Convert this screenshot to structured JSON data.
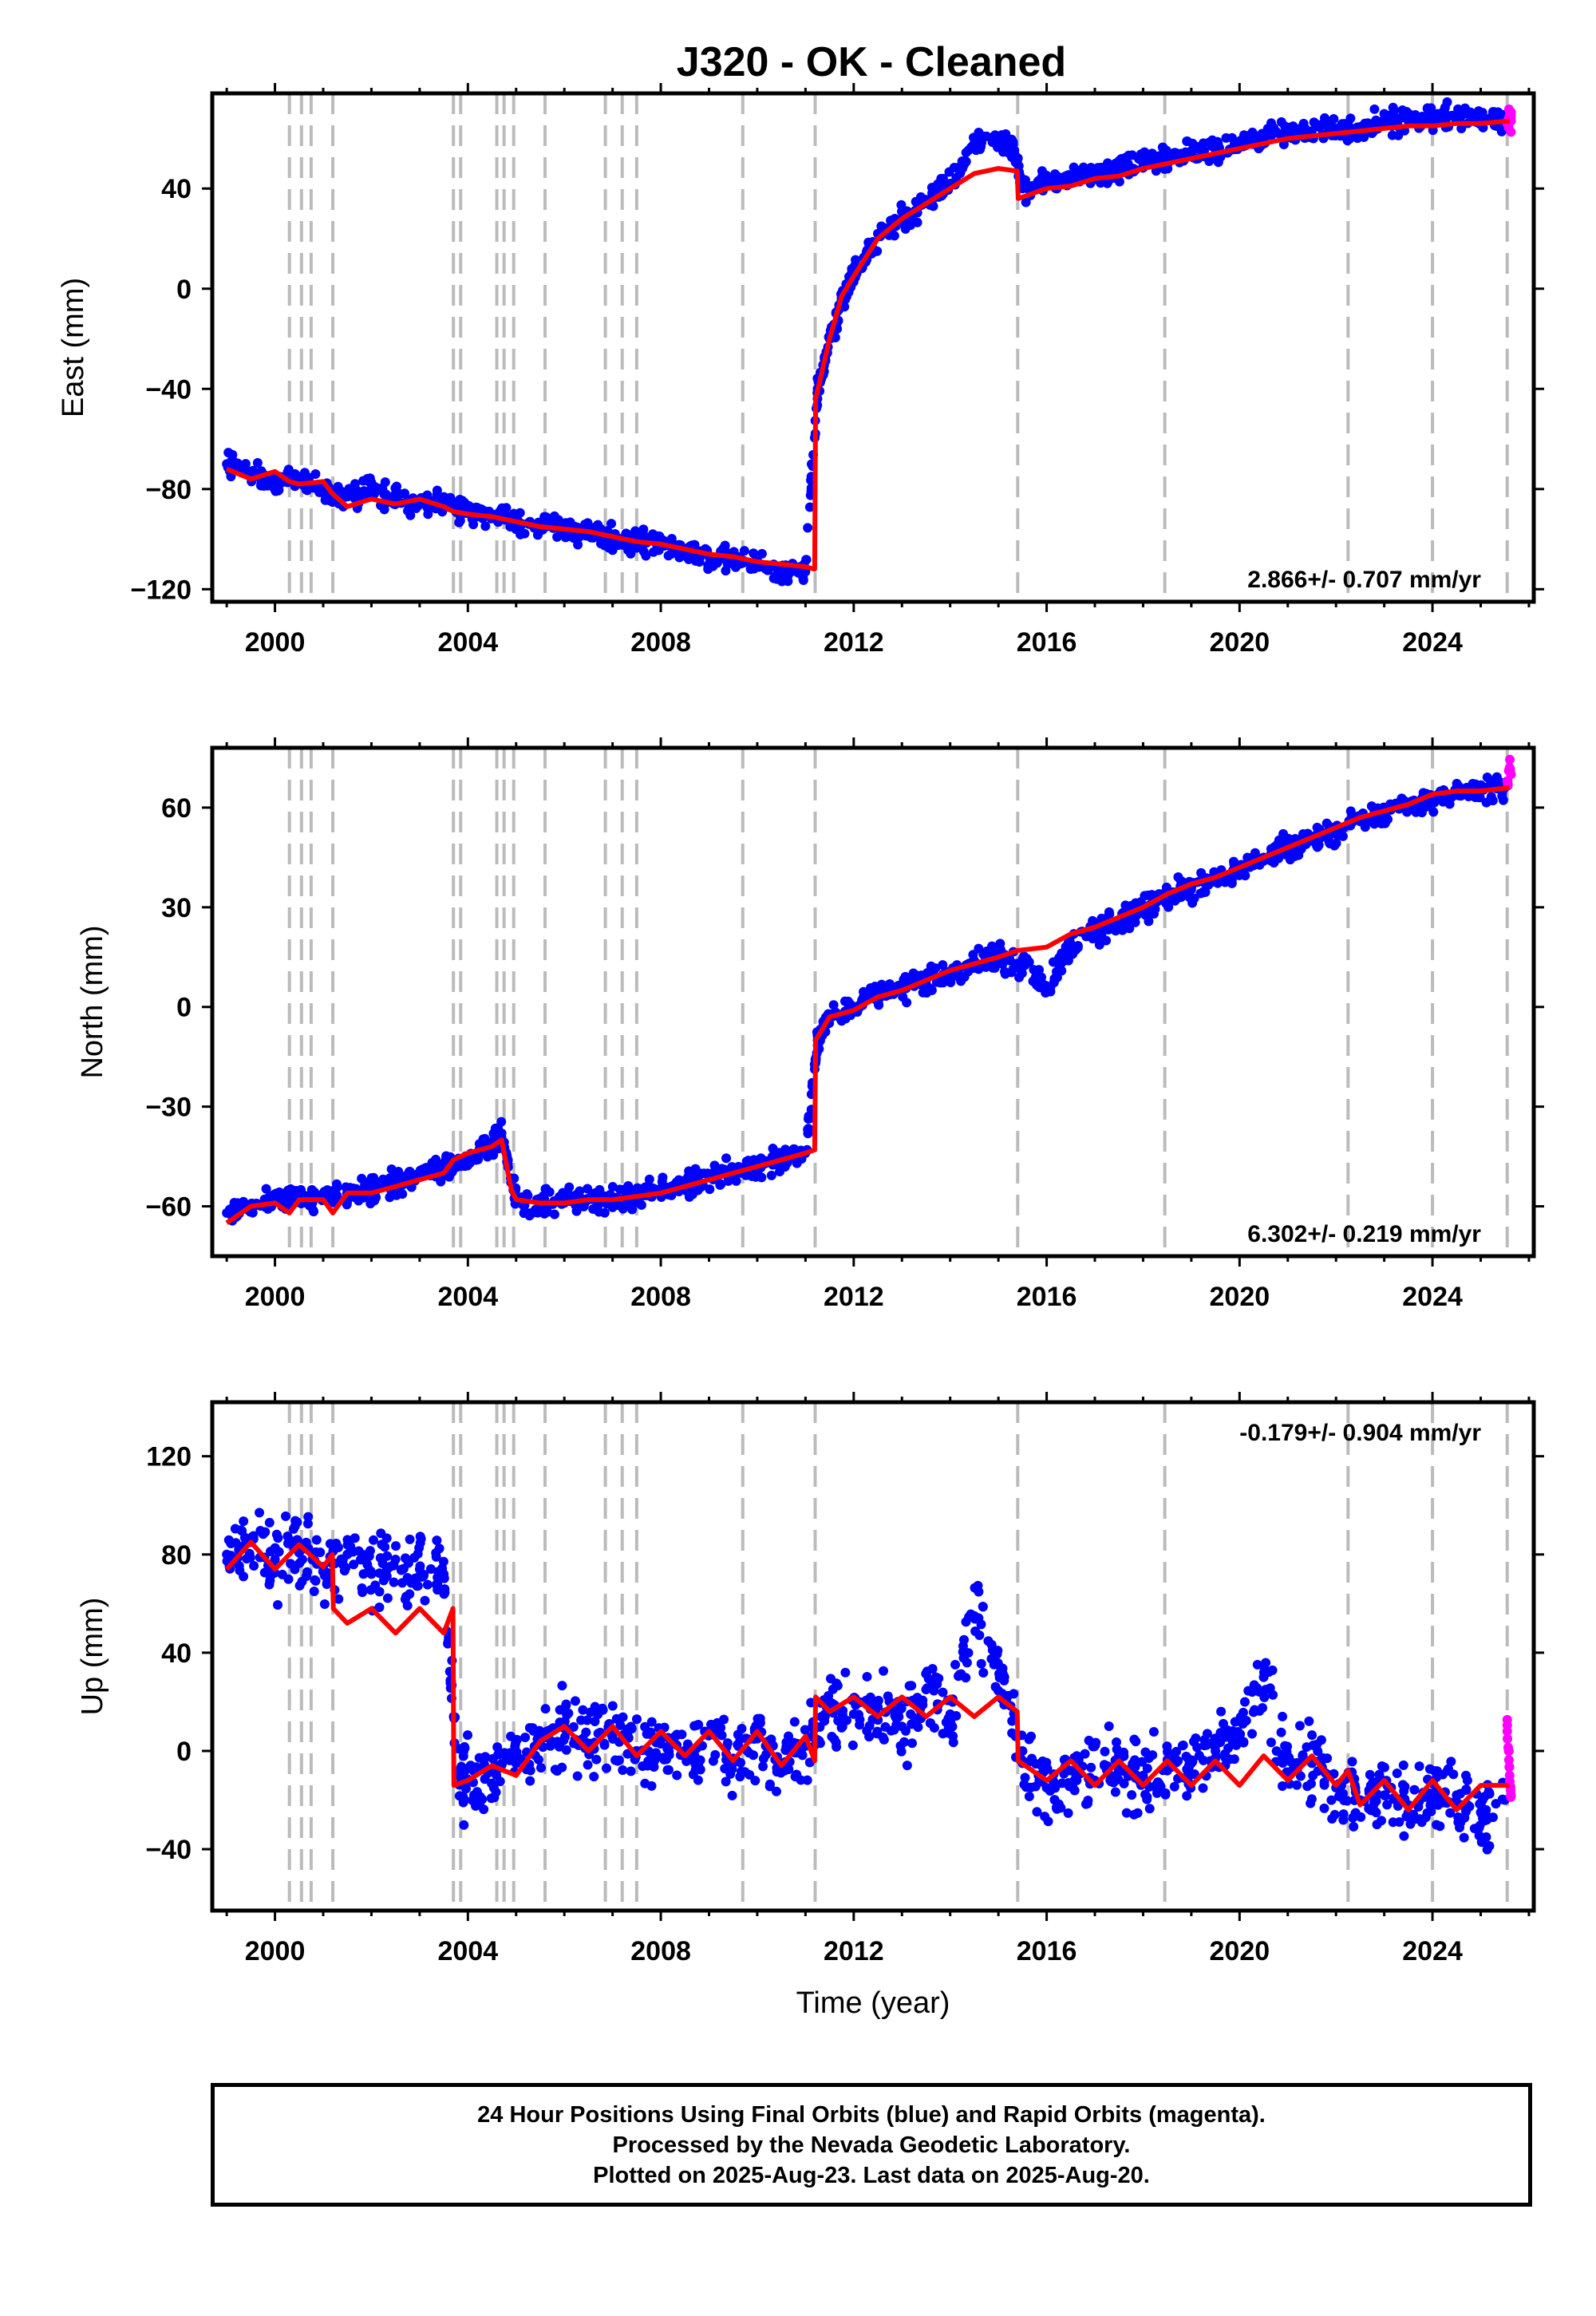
{
  "title": "J320  - OK - Cleaned",
  "footer": {
    "line1": "24 Hour Positions Using Final Orbits (blue) and Rapid Orbits (magenta).",
    "line2": "Processed by the Nevada Geodetic Laboratory.",
    "line3": "Plotted on 2025-Aug-23. Last data on 2025-Aug-20."
  },
  "colors": {
    "final_orbits": "#0000ff",
    "rapid_orbits": "#ff00ff",
    "model": "#ff0000",
    "event_lines": "#bbbbbb"
  },
  "chart_data": [
    {
      "type": "scatter",
      "ylabel": "East (mm)",
      "xlabel": "",
      "rate_label": "2.866+/- 0.707 mm/yr",
      "xlim": [
        1998.7,
        2026.1
      ],
      "ylim": [
        -125,
        78
      ],
      "xticks": [
        2000,
        2004,
        2008,
        2012,
        2016,
        2020,
        2024
      ],
      "yticks": [
        -120,
        -80,
        -40,
        0,
        40
      ],
      "event_lines": [
        2000.3,
        2000.55,
        2000.75,
        2001.2,
        2003.7,
        2003.85,
        2004.6,
        2004.75,
        2004.95,
        2005.6,
        2006.85,
        2007.2,
        2007.5,
        2009.7,
        2011.2,
        2015.4,
        2018.45,
        2022.25,
        2024.0,
        2025.55
      ],
      "series": [
        {
          "name": "Final Orbits",
          "color": "blue",
          "x": [
            1999.0,
            1999.5,
            2000.0,
            2000.5,
            2001.0,
            2001.5,
            2002.0,
            2002.5,
            2003.0,
            2003.5,
            2004.0,
            2004.5,
            2005.0,
            2005.5,
            2006.0,
            2006.5,
            2007.0,
            2007.5,
            2008.0,
            2008.5,
            2009.0,
            2009.5,
            2010.0,
            2010.5,
            2011.0,
            2011.25,
            2011.5,
            2011.75,
            2012.0,
            2012.5,
            2013.0,
            2013.5,
            2014.0,
            2014.5,
            2015.0,
            2015.3,
            2015.5,
            2016.0,
            2016.5,
            2017.0,
            2017.5,
            2018.0,
            2018.5,
            2019.0,
            2019.5,
            2020.0,
            2020.5,
            2021.0,
            2021.5,
            2022.0,
            2022.5,
            2023.0,
            2023.5,
            2024.0,
            2024.5,
            2025.0,
            2025.5
          ],
          "y": [
            -70,
            -74,
            -78,
            -76,
            -80,
            -83,
            -80,
            -84,
            -85,
            -86,
            -88,
            -90,
            -92,
            -95,
            -95,
            -97,
            -100,
            -100,
            -102,
            -104,
            -107,
            -108,
            -110,
            -113,
            -113,
            -40,
            -20,
            -5,
            5,
            22,
            28,
            35,
            42,
            58,
            58,
            57,
            40,
            42,
            45,
            45,
            48,
            50,
            52,
            54,
            56,
            57,
            60,
            62,
            63,
            64,
            64,
            66,
            67,
            68,
            69,
            68,
            67
          ]
        },
        {
          "name": "Rapid Orbits",
          "color": "magenta",
          "x": [
            2025.55,
            2025.6,
            2025.63
          ],
          "y": [
            66,
            69,
            67
          ]
        },
        {
          "name": "Model",
          "color": "red",
          "x": [
            1999.0,
            1999.5,
            2000.0,
            2000.3,
            2000.5,
            2001.0,
            2001.2,
            2001.5,
            2002.0,
            2002.5,
            2003.0,
            2003.5,
            2003.7,
            2004.0,
            2004.5,
            2005.0,
            2005.5,
            2006.0,
            2006.5,
            2007.0,
            2007.5,
            2008.0,
            2008.5,
            2009.0,
            2009.5,
            2010.0,
            2010.5,
            2011.0,
            2011.19,
            2011.21,
            2011.5,
            2011.75,
            2012.0,
            2012.5,
            2013.0,
            2013.5,
            2014.0,
            2014.5,
            2015.0,
            2015.39,
            2015.41,
            2016.0,
            2016.5,
            2017.0,
            2017.5,
            2018.0,
            2018.5,
            2019.0,
            2019.5,
            2020.0,
            2020.5,
            2021.0,
            2021.5,
            2022.0,
            2022.5,
            2023.0,
            2023.5,
            2024.0,
            2024.5,
            2025.0,
            2025.6
          ],
          "y": [
            -72,
            -76,
            -73,
            -77,
            -78,
            -77,
            -82,
            -87,
            -84,
            -86,
            -84,
            -87,
            -89,
            -90,
            -91,
            -93,
            -95,
            -96,
            -97,
            -99,
            -101,
            -102,
            -104,
            -106,
            -107,
            -109,
            -110,
            -111,
            -112,
            -44,
            -20,
            -3,
            5,
            20,
            28,
            34,
            40,
            46,
            48,
            47,
            36,
            40,
            41,
            44,
            45,
            48,
            50,
            52,
            54,
            56,
            58,
            60,
            61,
            62,
            63,
            64,
            65,
            65,
            66,
            66,
            67
          ]
        }
      ]
    },
    {
      "type": "scatter",
      "ylabel": "North (mm)",
      "xlabel": "",
      "rate_label": "6.302+/- 0.219 mm/yr",
      "xlim": [
        1998.7,
        2026.1
      ],
      "ylim": [
        -75,
        78
      ],
      "xticks": [
        2000,
        2004,
        2008,
        2012,
        2016,
        2020,
        2024
      ],
      "yticks": [
        -60,
        -30,
        0,
        30,
        60
      ],
      "event_lines": [
        2000.3,
        2000.55,
        2000.75,
        2001.2,
        2003.7,
        2003.85,
        2004.6,
        2004.75,
        2004.95,
        2005.6,
        2006.85,
        2007.2,
        2007.5,
        2009.7,
        2011.2,
        2015.4,
        2018.45,
        2022.25,
        2024.0,
        2025.55
      ],
      "series": [
        {
          "name": "Final Orbits",
          "color": "blue",
          "x": [
            1999.0,
            1999.5,
            2000.0,
            2000.5,
            2001.0,
            2001.5,
            2002.0,
            2002.5,
            2003.0,
            2003.5,
            2004.0,
            2004.5,
            2004.7,
            2005.0,
            2005.5,
            2006.0,
            2006.5,
            2007.0,
            2007.5,
            2008.0,
            2008.5,
            2009.0,
            2009.5,
            2010.0,
            2010.5,
            2011.0,
            2011.25,
            2011.5,
            2012.0,
            2012.5,
            2013.0,
            2013.5,
            2014.0,
            2014.5,
            2015.0,
            2015.5,
            2016.0,
            2016.5,
            2017.0,
            2017.5,
            2018.0,
            2018.5,
            2019.0,
            2019.5,
            2020.0,
            2020.5,
            2021.0,
            2021.5,
            2022.0,
            2022.5,
            2023.0,
            2023.5,
            2024.0,
            2024.5,
            2025.0,
            2025.5
          ],
          "y": [
            -62,
            -60,
            -58,
            -57,
            -57,
            -56,
            -55,
            -53,
            -51,
            -48,
            -46,
            -42,
            -38,
            -58,
            -60,
            -59,
            -58,
            -58,
            -57,
            -55,
            -53,
            -51,
            -49,
            -48,
            -46,
            -44,
            -10,
            -3,
            0,
            4,
            6,
            8,
            10,
            13,
            15,
            12,
            5,
            19,
            23,
            26,
            30,
            33,
            36,
            38,
            42,
            45,
            48,
            50,
            53,
            56,
            58,
            60,
            62,
            64,
            65,
            66
          ]
        },
        {
          "name": "Rapid Orbits",
          "color": "magenta",
          "x": [
            2025.55,
            2025.6,
            2025.63
          ],
          "y": [
            68,
            72,
            70
          ]
        },
        {
          "name": "Model",
          "color": "red",
          "x": [
            1999.0,
            1999.5,
            2000.0,
            2000.3,
            2000.5,
            2001.0,
            2001.2,
            2001.5,
            2002.0,
            2002.5,
            2003.0,
            2003.5,
            2003.7,
            2004.0,
            2004.5,
            2004.7,
            2004.9,
            2005.0,
            2005.5,
            2006.0,
            2006.5,
            2007.0,
            2007.5,
            2008.0,
            2008.5,
            2009.0,
            2009.5,
            2010.0,
            2010.5,
            2011.0,
            2011.19,
            2011.21,
            2011.5,
            2012.0,
            2012.5,
            2013.0,
            2013.5,
            2014.0,
            2014.5,
            2015.0,
            2015.4,
            2016.0,
            2016.5,
            2017.0,
            2017.5,
            2018.0,
            2018.5,
            2019.0,
            2019.5,
            2020.0,
            2020.5,
            2021.0,
            2021.5,
            2022.0,
            2022.5,
            2023.0,
            2023.5,
            2024.0,
            2024.5,
            2025.0,
            2025.6
          ],
          "y": [
            -65,
            -60,
            -59,
            -62,
            -58,
            -58,
            -62,
            -56,
            -56,
            -54,
            -52,
            -50,
            -46,
            -44,
            -42,
            -40,
            -55,
            -58,
            -59,
            -59,
            -58,
            -58,
            -57,
            -56,
            -54,
            -52,
            -50,
            -48,
            -46,
            -44,
            -43,
            -10,
            -3,
            -1,
            3,
            5,
            8,
            11,
            13,
            15,
            17,
            18,
            22,
            24,
            27,
            30,
            34,
            37,
            39,
            42,
            45,
            48,
            51,
            54,
            57,
            59,
            61,
            64,
            65,
            65,
            66
          ]
        }
      ]
    },
    {
      "type": "scatter",
      "ylabel": "Up (mm)",
      "xlabel": "Time (year)",
      "rate_label": "-0.179+/- 0.904 mm/yr",
      "xlim": [
        1998.7,
        2026.1
      ],
      "ylim": [
        -65,
        142
      ],
      "xticks": [
        2000,
        2004,
        2008,
        2012,
        2016,
        2020,
        2024
      ],
      "yticks": [
        -40,
        0,
        40,
        80,
        120
      ],
      "event_lines": [
        2000.3,
        2000.55,
        2000.75,
        2001.2,
        2003.7,
        2003.85,
        2004.6,
        2004.75,
        2004.95,
        2005.6,
        2006.85,
        2007.2,
        2007.5,
        2009.7,
        2011.2,
        2015.4,
        2018.45,
        2022.25,
        2024.0,
        2025.55
      ],
      "series": [
        {
          "name": "Final Orbits",
          "color": "blue",
          "x": [
            1999.0,
            1999.5,
            2000.0,
            2000.5,
            2001.0,
            2001.5,
            2002.0,
            2002.5,
            2003.0,
            2003.5,
            2003.8,
            2004.0,
            2004.5,
            2005.0,
            2005.5,
            2006.0,
            2006.5,
            2007.0,
            2007.5,
            2008.0,
            2008.5,
            2009.0,
            2009.5,
            2010.0,
            2010.5,
            2011.0,
            2011.5,
            2012.0,
            2012.5,
            2013.0,
            2013.5,
            2014.0,
            2014.5,
            2015.0,
            2015.5,
            2016.0,
            2016.5,
            2017.0,
            2017.5,
            2018.0,
            2018.5,
            2019.0,
            2019.5,
            2020.0,
            2020.5,
            2021.0,
            2021.5,
            2022.0,
            2022.5,
            2023.0,
            2023.5,
            2024.0,
            2024.5,
            2025.0,
            2025.5
          ],
          "y": [
            80,
            85,
            78,
            82,
            75,
            80,
            72,
            78,
            74,
            72,
            -10,
            -12,
            -8,
            -5,
            5,
            10,
            2,
            8,
            0,
            5,
            -2,
            8,
            -3,
            5,
            -5,
            2,
            20,
            15,
            18,
            10,
            25,
            15,
            55,
            35,
            -5,
            -15,
            -8,
            -12,
            -5,
            -10,
            -8,
            -5,
            0,
            5,
            30,
            -10,
            -5,
            -15,
            -20,
            -18,
            -22,
            -20,
            -18,
            -25,
            -20
          ]
        },
        {
          "name": "Rapid Orbits",
          "color": "magenta",
          "x": [
            2025.55,
            2025.58,
            2025.6,
            2025.63
          ],
          "y": [
            8,
            0,
            -10,
            -18
          ]
        },
        {
          "name": "Model",
          "color": "red",
          "x": [
            1999.0,
            1999.5,
            2000.0,
            2000.5,
            2001.0,
            2001.19,
            2001.21,
            2001.5,
            2002.0,
            2002.5,
            2003.0,
            2003.5,
            2003.69,
            2003.71,
            2004.0,
            2004.5,
            2005.0,
            2005.5,
            2006.0,
            2006.5,
            2007.0,
            2007.5,
            2008.0,
            2008.5,
            2009.0,
            2009.5,
            2010.0,
            2010.5,
            2011.0,
            2011.19,
            2011.21,
            2011.5,
            2012.0,
            2012.5,
            2013.0,
            2013.5,
            2014.0,
            2014.5,
            2015.0,
            2015.39,
            2015.41,
            2016.0,
            2016.5,
            2017.0,
            2017.5,
            2018.0,
            2018.5,
            2019.0,
            2019.5,
            2020.0,
            2020.5,
            2021.0,
            2021.5,
            2022.0,
            2022.25,
            2022.5,
            2023.0,
            2023.5,
            2024.0,
            2024.5,
            2025.0,
            2025.6
          ],
          "y": [
            74,
            85,
            74,
            84,
            75,
            80,
            58,
            52,
            58,
            48,
            58,
            48,
            58,
            -14,
            -12,
            -6,
            -10,
            4,
            10,
            0,
            10,
            -2,
            8,
            -2,
            8,
            -4,
            8,
            -6,
            6,
            -4,
            22,
            16,
            22,
            14,
            22,
            14,
            22,
            14,
            22,
            16,
            -4,
            -12,
            -4,
            -14,
            -4,
            -14,
            -4,
            -14,
            -4,
            -14,
            -2,
            -12,
            -2,
            -14,
            -8,
            -22,
            -12,
            -24,
            -12,
            -24,
            -14,
            -14
          ]
        }
      ]
    }
  ]
}
